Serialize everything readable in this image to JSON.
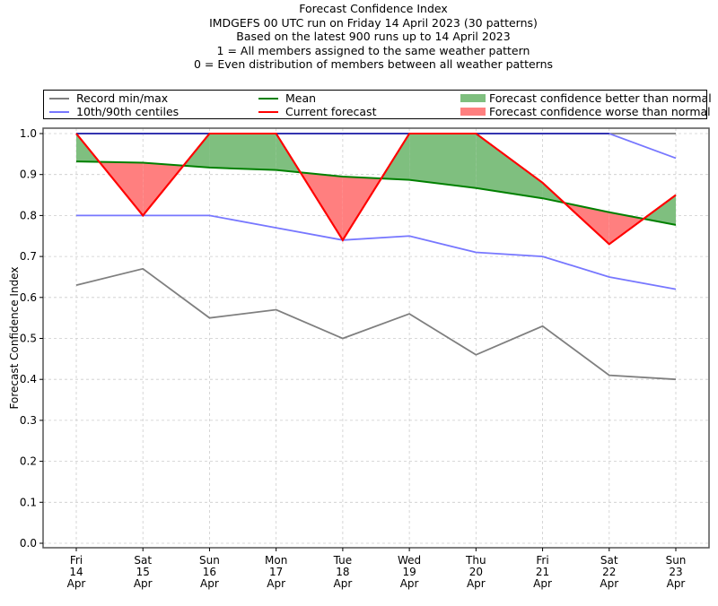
{
  "chart_data": {
    "type": "line",
    "title_lines": [
      "Forecast Confidence Index",
      "IMDGEFS 00 UTC run on Friday 14 April 2023 (30 patterns)",
      "Based on the latest 900 runs up to 14 April 2023",
      "1 = All members assigned to the same weather pattern",
      "0 = Even distribution of members between all weather patterns"
    ],
    "xlabel": "",
    "ylabel": "Forecast Confidence Index",
    "ylim": [
      0.0,
      1.0
    ],
    "yticks": [
      "0.0",
      "0.1",
      "0.2",
      "0.3",
      "0.4",
      "0.5",
      "0.6",
      "0.7",
      "0.8",
      "0.9",
      "1.0"
    ],
    "ytick_values": [
      0.0,
      0.1,
      0.2,
      0.3,
      0.4,
      0.5,
      0.6,
      0.7,
      0.8,
      0.9,
      1.0
    ],
    "grid": true,
    "legend_position": "top",
    "categories": [
      {
        "day": "Fri",
        "date": "14",
        "month": "Apr"
      },
      {
        "day": "Sat",
        "date": "15",
        "month": "Apr"
      },
      {
        "day": "Sun",
        "date": "16",
        "month": "Apr"
      },
      {
        "day": "Mon",
        "date": "17",
        "month": "Apr"
      },
      {
        "day": "Tue",
        "date": "18",
        "month": "Apr"
      },
      {
        "day": "Wed",
        "date": "19",
        "month": "Apr"
      },
      {
        "day": "Thu",
        "date": "20",
        "month": "Apr"
      },
      {
        "day": "Fri",
        "date": "21",
        "month": "Apr"
      },
      {
        "day": "Sat",
        "date": "22",
        "month": "Apr"
      },
      {
        "day": "Sun",
        "date": "23",
        "month": "Apr"
      }
    ],
    "series": [
      {
        "name": "Record max",
        "legend_group": "Record min/max",
        "color": "#7f7f7f",
        "values": [
          1.0,
          1.0,
          1.0,
          1.0,
          1.0,
          1.0,
          1.0,
          1.0,
          1.0,
          1.0
        ]
      },
      {
        "name": "Record min",
        "legend_group": "Record min/max",
        "color": "#7f7f7f",
        "values": [
          0.63,
          0.67,
          0.55,
          0.57,
          0.5,
          0.56,
          0.46,
          0.53,
          0.41,
          0.4
        ]
      },
      {
        "name": "90th centile",
        "legend_group": "10th/90th centiles",
        "color": "#7777ff",
        "values": [
          1.0,
          1.0,
          1.0,
          1.0,
          1.0,
          1.0,
          1.0,
          1.0,
          1.0,
          0.94
        ]
      },
      {
        "name": "10th centile",
        "legend_group": "10th/90th centiles",
        "color": "#7777ff",
        "values": [
          0.8,
          0.8,
          0.8,
          0.77,
          0.74,
          0.75,
          0.71,
          0.7,
          0.65,
          0.62
        ]
      },
      {
        "name": "Mean",
        "legend_group": "Mean",
        "color": "#008000",
        "values": [
          0.932,
          0.929,
          0.917,
          0.911,
          0.895,
          0.887,
          0.867,
          0.842,
          0.808,
          0.777
        ]
      },
      {
        "name": "Current forecast",
        "legend_group": "Current forecast",
        "color": "#ff0000",
        "values": [
          1.0,
          0.8,
          1.0,
          1.0,
          0.74,
          1.0,
          1.0,
          0.88,
          0.73,
          0.85
        ]
      }
    ],
    "fills": {
      "better": {
        "label": "Forecast confidence better than normal",
        "color": "#7fbf7f"
      },
      "worse": {
        "label": "Forecast confidence worse than normal",
        "color": "#ff7f7f"
      }
    }
  },
  "legend": {
    "record": "Record min/max",
    "centiles": "10th/90th centiles",
    "mean": "Mean",
    "current": "Current forecast",
    "better": "Forecast confidence better than normal",
    "worse": "Forecast confidence worse than normal"
  }
}
